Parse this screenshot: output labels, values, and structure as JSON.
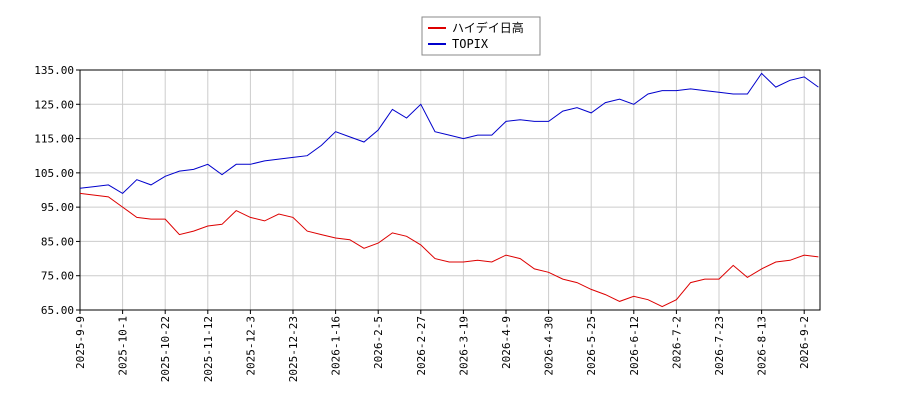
{
  "chart_data": {
    "type": "line",
    "x": [
      "2025-9-9",
      "2025-9-16",
      "2025-9-24",
      "2025-10-1",
      "2025-10-8",
      "2025-10-15",
      "2025-10-22",
      "2025-10-29",
      "2025-11-5",
      "2025-11-12",
      "2025-11-19",
      "2025-11-26",
      "2025-12-3",
      "2025-12-10",
      "2025-12-17",
      "2025-12-23",
      "2026-1-6",
      "2026-1-9",
      "2026-1-16",
      "2026-1-23",
      "2026-1-29",
      "2026-2-5",
      "2026-2-13",
      "2026-2-20",
      "2026-2-27",
      "2026-3-6",
      "2026-3-12",
      "2026-3-19",
      "2026-3-27",
      "2026-4-2",
      "2026-4-9",
      "2026-4-16",
      "2026-4-23",
      "2026-4-30",
      "2026-5-12",
      "2026-5-19",
      "2026-5-25",
      "2026-6-1",
      "2026-6-5",
      "2026-6-12",
      "2026-6-19",
      "2026-6-26",
      "2026-7-2",
      "2026-7-9",
      "2026-7-16",
      "2026-7-23",
      "2026-7-30",
      "2026-8-6",
      "2026-8-13",
      "2026-8-20",
      "2026-8-27",
      "2026-9-2",
      "2026-9-9"
    ],
    "series": [
      {
        "name": "ハイデイ日高",
        "color": "#dd0000",
        "values": [
          99,
          98.5,
          98,
          95,
          92,
          91.5,
          91.5,
          87,
          88,
          89.5,
          90,
          94,
          92,
          91,
          93,
          92,
          88,
          87,
          86,
          85.5,
          83,
          84.5,
          87.5,
          86.5,
          84,
          80,
          79,
          79,
          79.5,
          79,
          81,
          80,
          77,
          76,
          74,
          73,
          71,
          69.5,
          67.5,
          69,
          68,
          66,
          68,
          73,
          74,
          74,
          78,
          74.5,
          77,
          79,
          79.5,
          81,
          80.5
        ]
      },
      {
        "name": "TOPIX",
        "color": "#0000cc",
        "values": [
          100.5,
          101,
          101.5,
          99,
          103,
          101.5,
          104,
          105.5,
          106,
          107.5,
          104.5,
          107.5,
          107.5,
          108.5,
          109,
          109.5,
          110,
          113,
          117,
          115.5,
          114,
          117.5,
          123.5,
          121,
          125,
          117,
          116,
          115,
          116,
          116,
          120,
          120.5,
          120,
          120,
          123,
          124,
          122.5,
          125.5,
          126.5,
          125,
          128,
          129,
          129,
          129.5,
          129,
          128.5,
          128,
          128,
          134,
          130,
          132,
          133,
          130
        ]
      }
    ],
    "ylim": [
      65,
      135
    ],
    "yticks": [
      {
        "value": 65,
        "label": "65.00"
      },
      {
        "value": 75,
        "label": "75.00"
      },
      {
        "value": 85,
        "label": "85.00"
      },
      {
        "value": 95,
        "label": "95.00"
      },
      {
        "value": 105,
        "label": "105.00"
      },
      {
        "value": 115,
        "label": "115.00"
      },
      {
        "value": 125,
        "label": "125.00"
      },
      {
        "value": 135,
        "label": "135.00"
      }
    ],
    "xticks": [
      "2025-9-9",
      "2025-10-1",
      "2025-10-22",
      "2025-11-12",
      "2025-12-3",
      "2025-12-23",
      "2026-1-16",
      "2026-2-5",
      "2026-2-27",
      "2026-3-19",
      "2026-4-9",
      "2026-4-30",
      "2026-5-25",
      "2026-6-12",
      "2026-7-2",
      "2026-7-23",
      "2026-8-13",
      "2026-9-2"
    ],
    "grid": true,
    "legend": "top"
  }
}
